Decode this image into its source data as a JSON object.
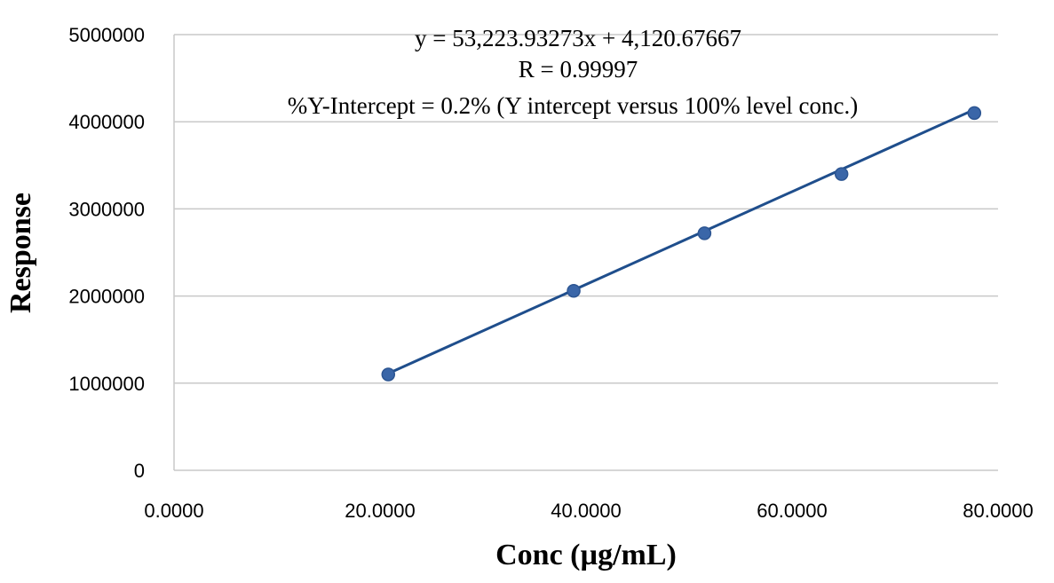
{
  "chart_data": {
    "type": "scatter",
    "xlabel": "Conc (µg/mL)",
    "ylabel": "Response",
    "xlim": [
      0,
      80
    ],
    "ylim": [
      0,
      5000000
    ],
    "x_ticks": [
      "0.0000",
      "20.0000",
      "40.0000",
      "60.0000",
      "80.0000"
    ],
    "y_ticks": [
      "0",
      "1000000",
      "2000000",
      "3000000",
      "4000000",
      "5000000"
    ],
    "grid": "horizontal",
    "series": [
      {
        "x": [
          20.8,
          38.8,
          51.5,
          64.8,
          77.7
        ],
        "y": [
          1100000,
          2060000,
          2720000,
          3400000,
          4100000
        ],
        "color": "#3a66a8",
        "marker": "circle"
      }
    ],
    "trendline": {
      "type": "linear",
      "slope": 53223.93273,
      "intercept": 4120.67667,
      "x_range": [
        20.8,
        77.7
      ],
      "color": "#1f4e8c"
    },
    "annotations": [
      "y = 53,223.93273x + 4,120.67667",
      "R = 0.99997",
      "%Y-Intercept = 0.2% (Y intercept versus 100% level conc.)"
    ]
  }
}
